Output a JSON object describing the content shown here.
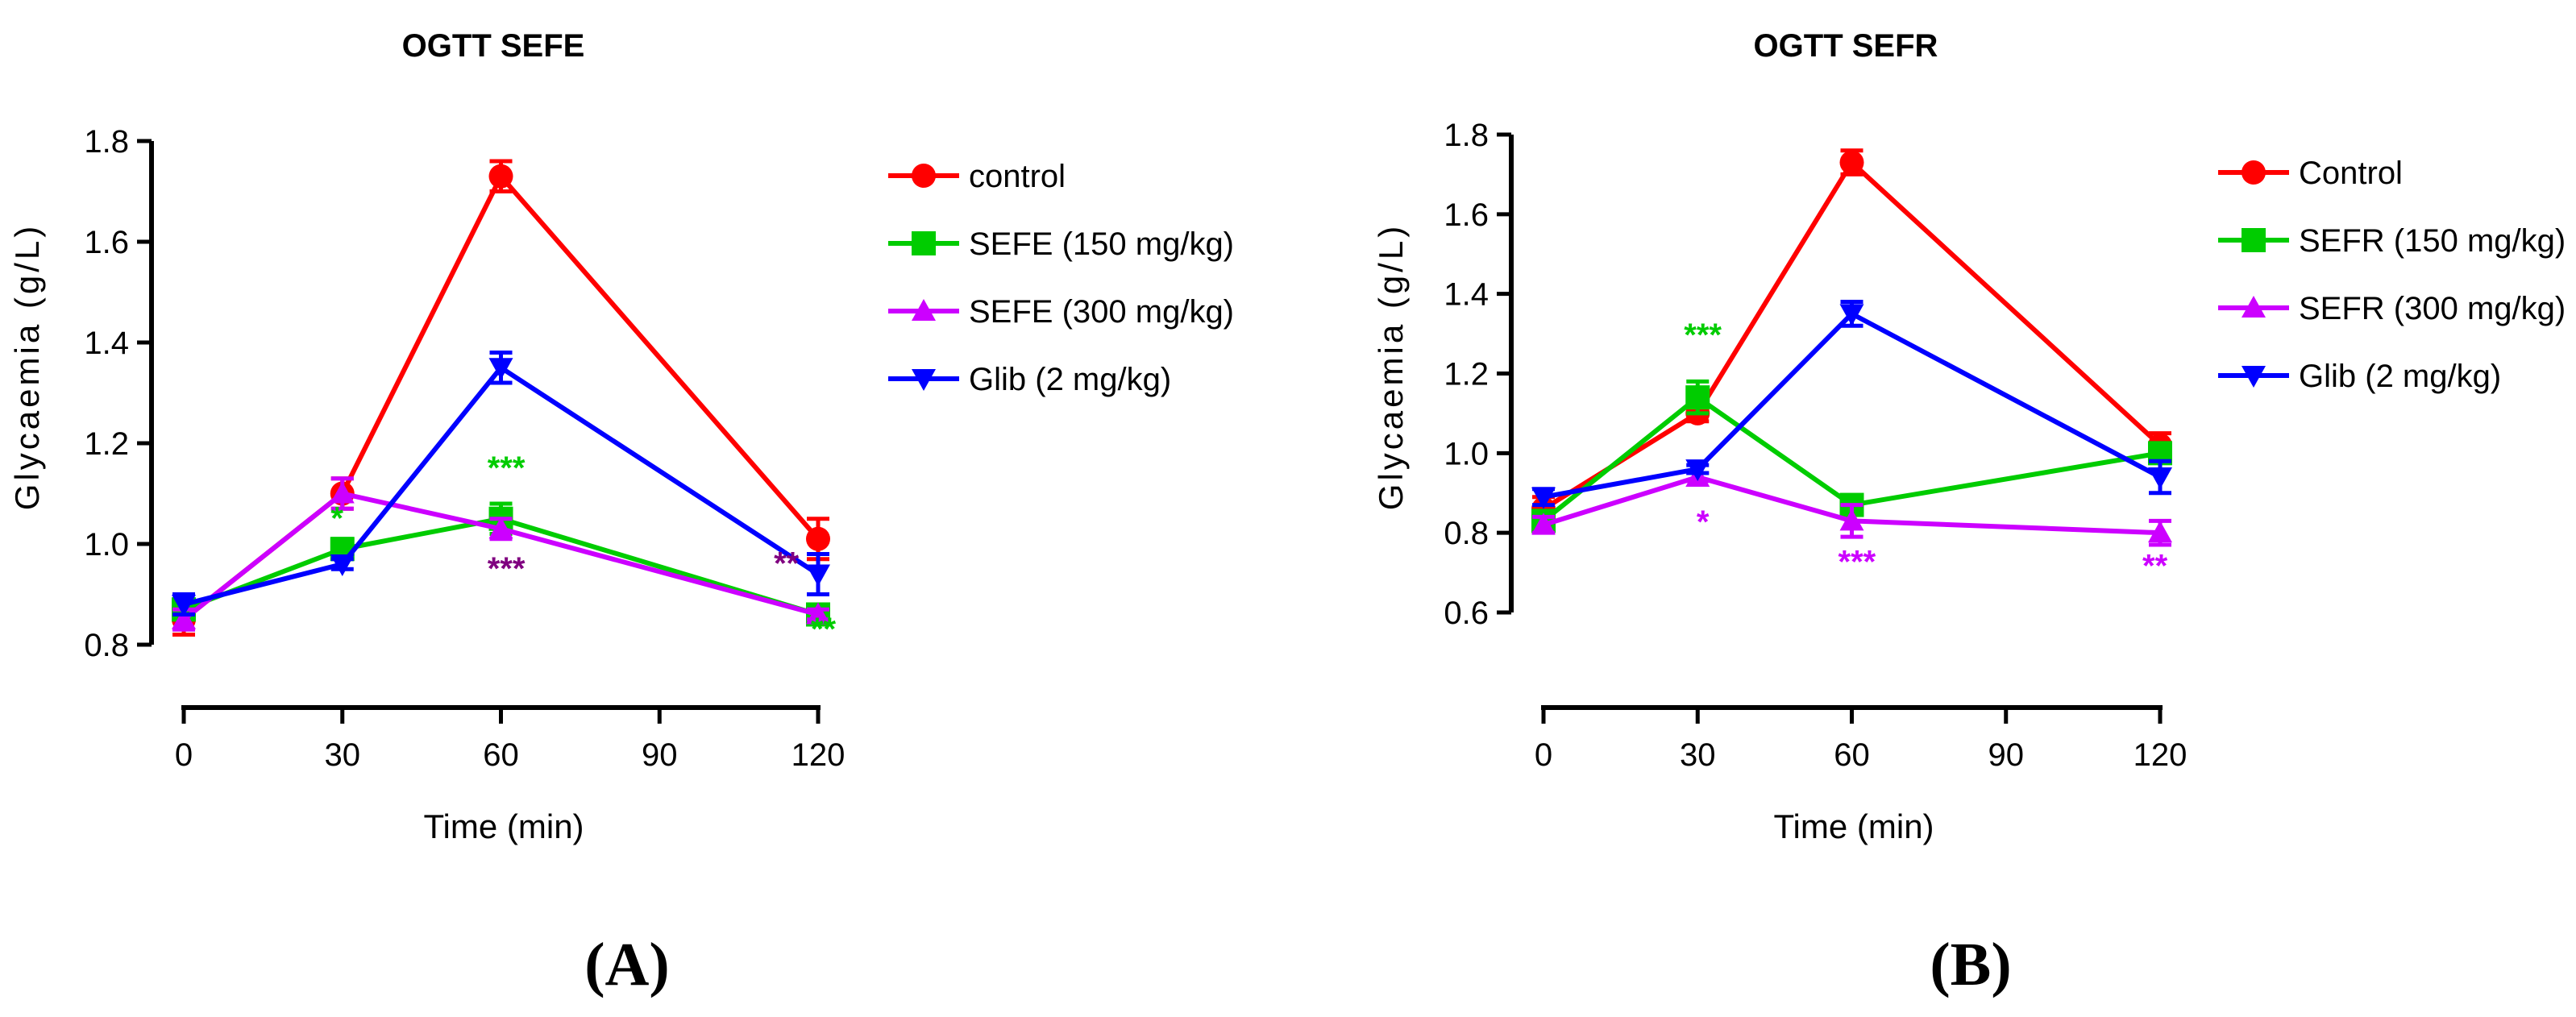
{
  "chart_data": [
    {
      "type": "line",
      "title": "OGTT SEFE",
      "panel_label": "(A)",
      "xlabel": "Time (min)",
      "ylabel": "Glycaemia (g/L)",
      "x": [
        0,
        30,
        60,
        120
      ],
      "xticks": [
        0,
        30,
        60,
        90,
        120
      ],
      "xtick_labels": [
        "0",
        "30",
        "60",
        "90",
        "120"
      ],
      "xlim": [
        0,
        120
      ],
      "ylim": [
        0.8,
        1.8
      ],
      "yticks": [
        0.8,
        1.0,
        1.2,
        1.4,
        1.6,
        1.8
      ],
      "ytick_labels": [
        "0.8",
        "1.0",
        "1.2",
        "1.4",
        "1.6",
        "1.8"
      ],
      "legend_position": "right",
      "series": [
        {
          "name": "control",
          "color": "#ff0000",
          "marker": "circle",
          "values": [
            0.85,
            1.1,
            1.73,
            1.01
          ],
          "errors": [
            0.03,
            0.03,
            0.03,
            0.04
          ]
        },
        {
          "name": "SEFE (150 mg/kg)",
          "color": "#00cc00",
          "marker": "square",
          "values": [
            0.87,
            0.99,
            1.05,
            0.86
          ],
          "errors": [
            0.02,
            0.02,
            0.03,
            0.01
          ]
        },
        {
          "name": "SEFE (300 mg/kg)",
          "color": "#cc00ff",
          "marker": "triangle-up",
          "values": [
            0.85,
            1.1,
            1.03,
            0.86
          ],
          "errors": [
            0.02,
            0.03,
            0.02,
            0.01
          ]
        },
        {
          "name": "Glib (2 mg/kg)",
          "color": "#0000ff",
          "marker": "triangle-down",
          "values": [
            0.88,
            0.96,
            1.35,
            0.94
          ],
          "errors": [
            0.02,
            0.01,
            0.03,
            0.04
          ]
        }
      ],
      "annotations": [
        {
          "text": "*",
          "x": 29,
          "y": 1.03,
          "color": "#00cc00"
        },
        {
          "text": "***",
          "x": 61,
          "y": 1.13,
          "color": "#00cc00"
        },
        {
          "text": "***",
          "x": 61,
          "y": 0.93,
          "color": "#800080"
        },
        {
          "text": "**",
          "x": 114,
          "y": 0.94,
          "color": "#800080"
        },
        {
          "text": "**",
          "x": 121,
          "y": 0.81,
          "color": "#00cc00"
        }
      ]
    },
    {
      "type": "line",
      "title": "OGTT SEFR",
      "panel_label": "(B)",
      "xlabel": "Time (min)",
      "ylabel": "Glycaemia (g/L)",
      "x": [
        0,
        30,
        60,
        120
      ],
      "xticks": [
        0,
        30,
        60,
        90,
        120
      ],
      "xtick_labels": [
        "0",
        "30",
        "60",
        "90",
        "120"
      ],
      "xlim": [
        0,
        120
      ],
      "ylim": [
        0.6,
        1.8
      ],
      "yticks": [
        0.6,
        0.8,
        1.0,
        1.2,
        1.4,
        1.6,
        1.8
      ],
      "ytick_labels": [
        "0.6",
        "0.8",
        "1.0",
        "1.2",
        "1.4",
        "1.6",
        "1.8"
      ],
      "legend_position": "right",
      "series": [
        {
          "name": "Control",
          "color": "#ff0000",
          "marker": "circle",
          "values": [
            0.86,
            1.1,
            1.73,
            1.02
          ],
          "errors": [
            0.03,
            0.02,
            0.03,
            0.03
          ]
        },
        {
          "name": "SEFR (150 mg/kg)",
          "color": "#00cc00",
          "marker": "square",
          "values": [
            0.83,
            1.14,
            0.87,
            1.0
          ],
          "errors": [
            0.02,
            0.04,
            0.02,
            0.02
          ]
        },
        {
          "name": "SEFR (300 mg/kg)",
          "color": "#cc00ff",
          "marker": "triangle-up",
          "values": [
            0.82,
            0.94,
            0.83,
            0.8
          ],
          "errors": [
            0.02,
            0.01,
            0.04,
            0.03
          ]
        },
        {
          "name": "Glib (2 mg/kg)",
          "color": "#0000ff",
          "marker": "triangle-down",
          "values": [
            0.89,
            0.96,
            1.35,
            0.94
          ],
          "errors": [
            0.02,
            0.01,
            0.03,
            0.04
          ]
        }
      ],
      "annotations": [
        {
          "text": "***",
          "x": 31,
          "y": 1.27,
          "color": "#00cc00"
        },
        {
          "text": "*",
          "x": 31,
          "y": 0.8,
          "color": "#cc00ff"
        },
        {
          "text": "***",
          "x": 61,
          "y": 0.7,
          "color": "#cc00ff"
        },
        {
          "text": "**",
          "x": 119,
          "y": 0.69,
          "color": "#cc00ff"
        }
      ]
    }
  ]
}
